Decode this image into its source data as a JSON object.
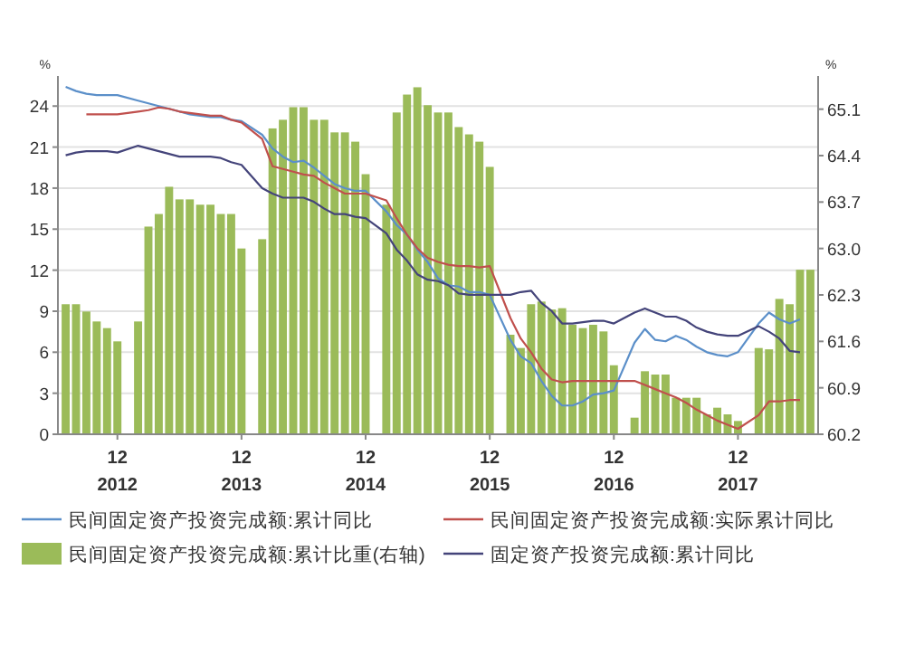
{
  "chart_data": {
    "type": "line",
    "categories": [
      null,
      null,
      null,
      null,
      null,
      "12\n2012",
      null,
      null,
      null,
      null,
      null,
      null,
      null,
      null,
      null,
      null,
      null,
      "12\n2013",
      null,
      null,
      null,
      null,
      null,
      null,
      null,
      null,
      null,
      null,
      null,
      "12\n2014",
      null,
      null,
      null,
      null,
      null,
      null,
      null,
      null,
      null,
      null,
      null,
      "12\n2015",
      null,
      null,
      null,
      null,
      null,
      null,
      null,
      null,
      null,
      null,
      null,
      "12\n2016",
      null,
      null,
      null,
      null,
      null,
      null,
      null,
      null,
      null,
      null,
      null,
      "12\n2017",
      null,
      null,
      null,
      null,
      null,
      null,
      null
    ],
    "ylabel": "%",
    "y2label": "%",
    "ylim": [
      0,
      26.2
    ],
    "yticks": [
      0,
      3,
      6,
      9,
      12,
      15,
      18,
      21,
      24
    ],
    "y2lim": [
      60.2,
      65.6
    ],
    "y2ticks": [
      60.2,
      60.9,
      61.6,
      62.3,
      {
        "value": 63,
        "label": "63.0"
      },
      63.7,
      64.4,
      65.1
    ],
    "grid": "y",
    "legend": "bottom",
    "series": [
      {
        "name": "民间固定资产投资完成额:累计同比",
        "color": "#5b8fc9",
        "values": [
          25.4,
          25.1,
          24.9,
          24.8,
          24.8,
          24.8,
          null,
          24.4,
          24.2,
          24.0,
          23.8,
          23.6,
          23.4,
          23.3,
          23.2,
          23.2,
          23.0,
          22.9,
          null,
          21.9,
          20.9,
          20.3,
          19.9,
          20.0,
          19.5,
          18.9,
          18.3,
          18.0,
          17.8,
          17.8,
          null,
          16.3,
          15.3,
          14.6,
          13.5,
          12.6,
          11.4,
          10.9,
          10.8,
          10.4,
          10.4,
          10.2,
          null,
          6.9,
          5.7,
          5.2,
          3.9,
          2.8,
          2.1,
          2.1,
          2.4,
          2.9,
          3.0,
          3.2,
          null,
          6.7,
          7.7,
          6.9,
          6.8,
          7.2,
          6.9,
          6.4,
          6.0,
          5.8,
          5.7,
          6.0,
          null,
          8.1,
          8.9,
          8.4,
          8.1,
          8.4,
          null
        ]
      },
      {
        "name": "民间固定资产投资完成额:实际累计同比",
        "color": "#c0504d",
        "values": [
          null,
          null,
          23.4,
          23.4,
          23.4,
          23.4,
          null,
          23.6,
          23.7,
          23.9,
          23.8,
          23.6,
          23.5,
          23.4,
          23.3,
          23.3,
          23.0,
          22.8,
          null,
          21.6,
          19.6,
          19.4,
          19.2,
          19.0,
          18.9,
          18.4,
          18.0,
          17.6,
          17.6,
          17.6,
          null,
          17.1,
          15.8,
          14.6,
          13.6,
          12.9,
          12.6,
          12.4,
          12.3,
          12.3,
          12.2,
          12.3,
          null,
          8.5,
          7.0,
          6.0,
          4.8,
          4.0,
          3.8,
          3.9,
          3.9,
          3.9,
          3.9,
          3.9,
          null,
          3.9,
          3.6,
          3.3,
          3.0,
          2.7,
          2.3,
          1.8,
          1.4,
          1.0,
          0.7,
          0.4,
          null,
          1.4,
          2.4,
          2.4,
          2.5,
          2.5,
          null
        ]
      },
      {
        "name": "民间固定资产投资完成额:累计比重(右轴)",
        "type": "bar",
        "axis": "y2",
        "color": "#9bbb59",
        "values": [
          62.16,
          62.16,
          62.05,
          61.9,
          61.8,
          61.6,
          null,
          61.9,
          63.33,
          63.52,
          63.93,
          63.74,
          63.74,
          63.66,
          63.66,
          63.52,
          63.52,
          63.0,
          null,
          63.14,
          64.81,
          64.94,
          65.13,
          65.13,
          64.94,
          64.94,
          64.75,
          64.75,
          64.61,
          64.12,
          null,
          63.66,
          65.05,
          65.32,
          65.43,
          65.16,
          65.05,
          65.05,
          64.83,
          64.72,
          64.61,
          64.23,
          null,
          61.7,
          61.5,
          62.16,
          62.2,
          62.08,
          62.1,
          61.85,
          61.8,
          61.85,
          61.75,
          61.24,
          null,
          60.45,
          61.15,
          61.1,
          61.1,
          60.75,
          60.75,
          60.75,
          60.5,
          60.6,
          60.5,
          60.4,
          null,
          61.5,
          61.48,
          62.24,
          62.16,
          62.68,
          62.68
        ]
      },
      {
        "name": "固定资产投资完成额:累计同比",
        "color": "#44447a",
        "values": [
          20.4,
          20.6,
          20.7,
          20.7,
          20.7,
          20.6,
          null,
          21.1,
          20.9,
          20.7,
          20.5,
          20.3,
          20.3,
          20.3,
          20.3,
          20.2,
          19.9,
          19.7,
          null,
          18.0,
          17.6,
          17.3,
          17.3,
          17.3,
          17.0,
          16.5,
          16.1,
          16.1,
          15.9,
          15.8,
          null,
          14.7,
          13.5,
          12.7,
          11.7,
          11.3,
          11.2,
          10.9,
          10.3,
          10.2,
          10.2,
          10.2,
          null,
          10.2,
          10.4,
          10.5,
          9.6,
          9.0,
          8.1,
          8.1,
          8.2,
          8.3,
          8.3,
          8.1,
          null,
          8.9,
          9.2,
          8.9,
          8.6,
          8.6,
          8.3,
          7.8,
          7.5,
          7.3,
          7.2,
          7.2,
          null,
          7.9,
          7.5,
          7.0,
          6.1,
          6.0,
          null
        ]
      }
    ]
  }
}
